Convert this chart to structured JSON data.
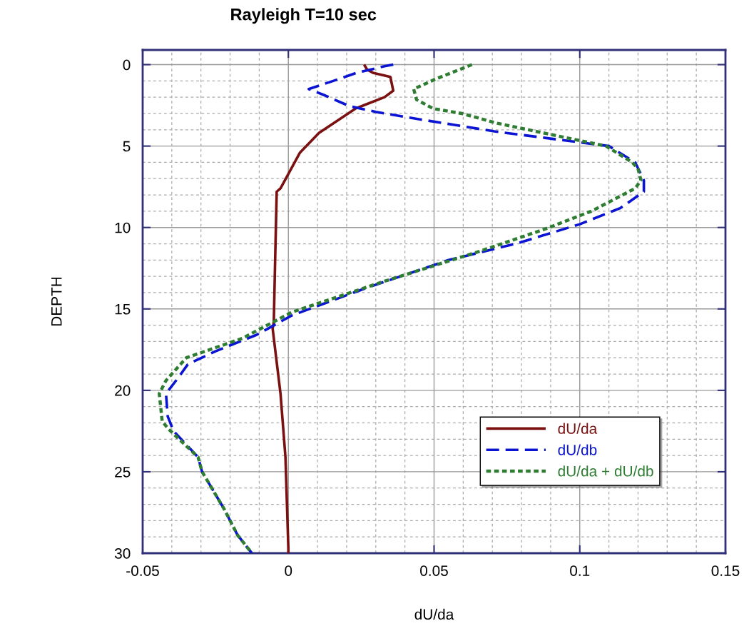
{
  "chart_data": {
    "type": "line",
    "title": "Rayleigh T=10 sec",
    "xlabel": "dU/da",
    "ylabel": "DEPTH",
    "xlim": [
      -0.05,
      0.15
    ],
    "xticks": [
      -0.05,
      0,
      0.05,
      0.1,
      0.15
    ],
    "ylim": [
      30,
      -0.9
    ],
    "yticks": [
      0,
      5,
      10,
      15,
      20,
      25,
      30
    ],
    "grid": true,
    "legend": "lower right",
    "series": [
      {
        "name": "dU/da",
        "color": "#7a1010",
        "line_style": "solid",
        "x": [
          0.026,
          0.027,
          0.029,
          0.035,
          0.036,
          0.033,
          0.023,
          0.0105,
          0.004,
          -0.0027,
          -0.004,
          -0.0045,
          -0.005,
          -0.0054,
          -0.0027,
          -0.001,
          0,
          0
        ],
        "values": [
          0,
          0.3,
          0.5,
          0.75,
          1.6,
          2.0,
          2.7,
          4.2,
          5.4,
          7.6,
          7.8,
          11.7,
          15.8,
          16.2,
          20.2,
          24.1,
          29.7,
          30
        ]
      },
      {
        "name": "dU/db",
        "color": "#0a14d2",
        "line_style": "dashed",
        "x": [
          0.036,
          0.033,
          0.0235,
          0.0154,
          0.007,
          0.012,
          0.021,
          0.03,
          0.043,
          0.057,
          0.0707,
          0.11,
          0.119,
          0.122,
          0.122,
          0.114,
          0.1,
          0.078,
          0.055,
          0.027,
          0.0012,
          -0.011,
          -0.025,
          -0.0345,
          -0.0377,
          -0.042,
          -0.0414,
          -0.0394,
          -0.031,
          -0.0296,
          -0.022,
          -0.0174,
          -0.0125
        ],
        "values": [
          0,
          0.1,
          0.5,
          1.0,
          1.5,
          1.85,
          2.55,
          2.9,
          3.3,
          3.7,
          4.1,
          5,
          6,
          7.1,
          7.8,
          8.8,
          9.8,
          11.0,
          12.0,
          13.7,
          15.4,
          16.6,
          17.6,
          18.4,
          19.2,
          20.2,
          21.6,
          22.5,
          24.1,
          25,
          27.3,
          28.9,
          30
        ]
      },
      {
        "name": "dU/da + dU/db",
        "color": "#2e7d32",
        "line_style": "dotted",
        "x": [
          0.063,
          0.0595,
          0.051,
          0.043,
          0.044,
          0.0497,
          0.0595,
          0.0717,
          0.109,
          0.118,
          0.12,
          0.121,
          0.119,
          0.104,
          0.088,
          0.065,
          0.033,
          0.0012,
          -0.0157,
          -0.035,
          -0.042,
          -0.0443,
          -0.0433,
          -0.041,
          -0.031,
          -0.0296,
          -0.022,
          -0.0174,
          -0.0125
        ],
        "values": [
          0,
          0.25,
          0.85,
          1.5,
          2.15,
          2.7,
          3.0,
          3.6,
          5,
          6,
          6.4,
          7.1,
          7.6,
          9.0,
          10.1,
          11.5,
          13.3,
          15.2,
          16.8,
          18.0,
          19.4,
          20.2,
          21.9,
          22.4,
          24.1,
          25,
          27.3,
          28.9,
          30
        ]
      }
    ]
  }
}
